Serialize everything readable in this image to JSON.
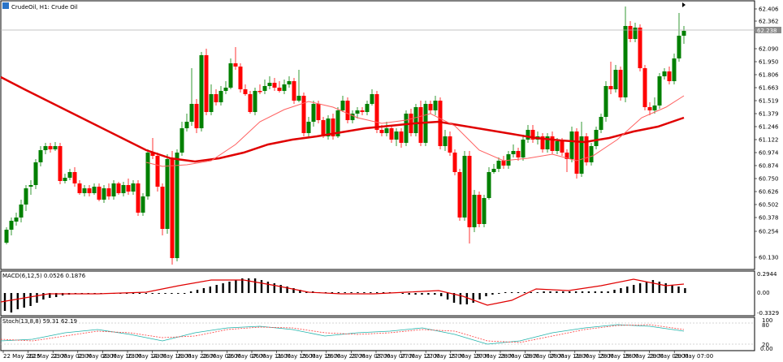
{
  "main_chart": {
    "title": "CrudeOil, H1:  Crude Oil",
    "price_labels": [
      "62.406",
      "62.362",
      "62.238",
      "62.090",
      "61.950",
      "61.806",
      "61.663",
      "61.519",
      "61.379",
      "61.246",
      "61.122",
      "60.974",
      "60.874",
      "60.750",
      "60.626",
      "60.502",
      "60.378",
      "60.254",
      "60.130"
    ],
    "current_price": "62.238",
    "colors": {
      "bull": "#008000",
      "bear": "#ff0000",
      "ma_fast": "#ff6060",
      "ma_slow": "#e00000",
      "grid": "#c8c8c8",
      "frame": "#000000"
    }
  },
  "macd": {
    "title": "MACD(6,12,5) 0.0526 0.1876",
    "scale_labels": [
      "0.2944",
      "0.00",
      "-0.3329"
    ]
  },
  "stoch": {
    "title": "Stoch(13,8,8) 59.31 62.19",
    "scale_labels": [
      "100",
      "80",
      "20",
      "0.00"
    ],
    "colors": {
      "k": "#20b2aa",
      "d": "#ff4040"
    }
  },
  "time_axis": {
    "labels": [
      "22 May 2025",
      "22 May 22:00",
      "23 May 02:00",
      "23 May 06:00",
      "23 May 10:00",
      "23 May 14:00",
      "23 May 18:00",
      "23 May 22:00",
      "26 May 02:00",
      "26 May 07:00",
      "26 May 11:00",
      "26 May 15:00",
      "26 May 19:00",
      "26 May 23:00",
      "27 May 03:00",
      "27 May 07:00",
      "27 May 11:00",
      "27 May 15:00",
      "27 May 19:00",
      "27 May 23:00",
      "28 May 03:00",
      "28 May 07:00",
      "28 May 11:00",
      "28 May 15:00",
      "28 May 19:00",
      "28 May 23:00",
      "29 May 03:00",
      "29 May 07:00"
    ]
  }
}
